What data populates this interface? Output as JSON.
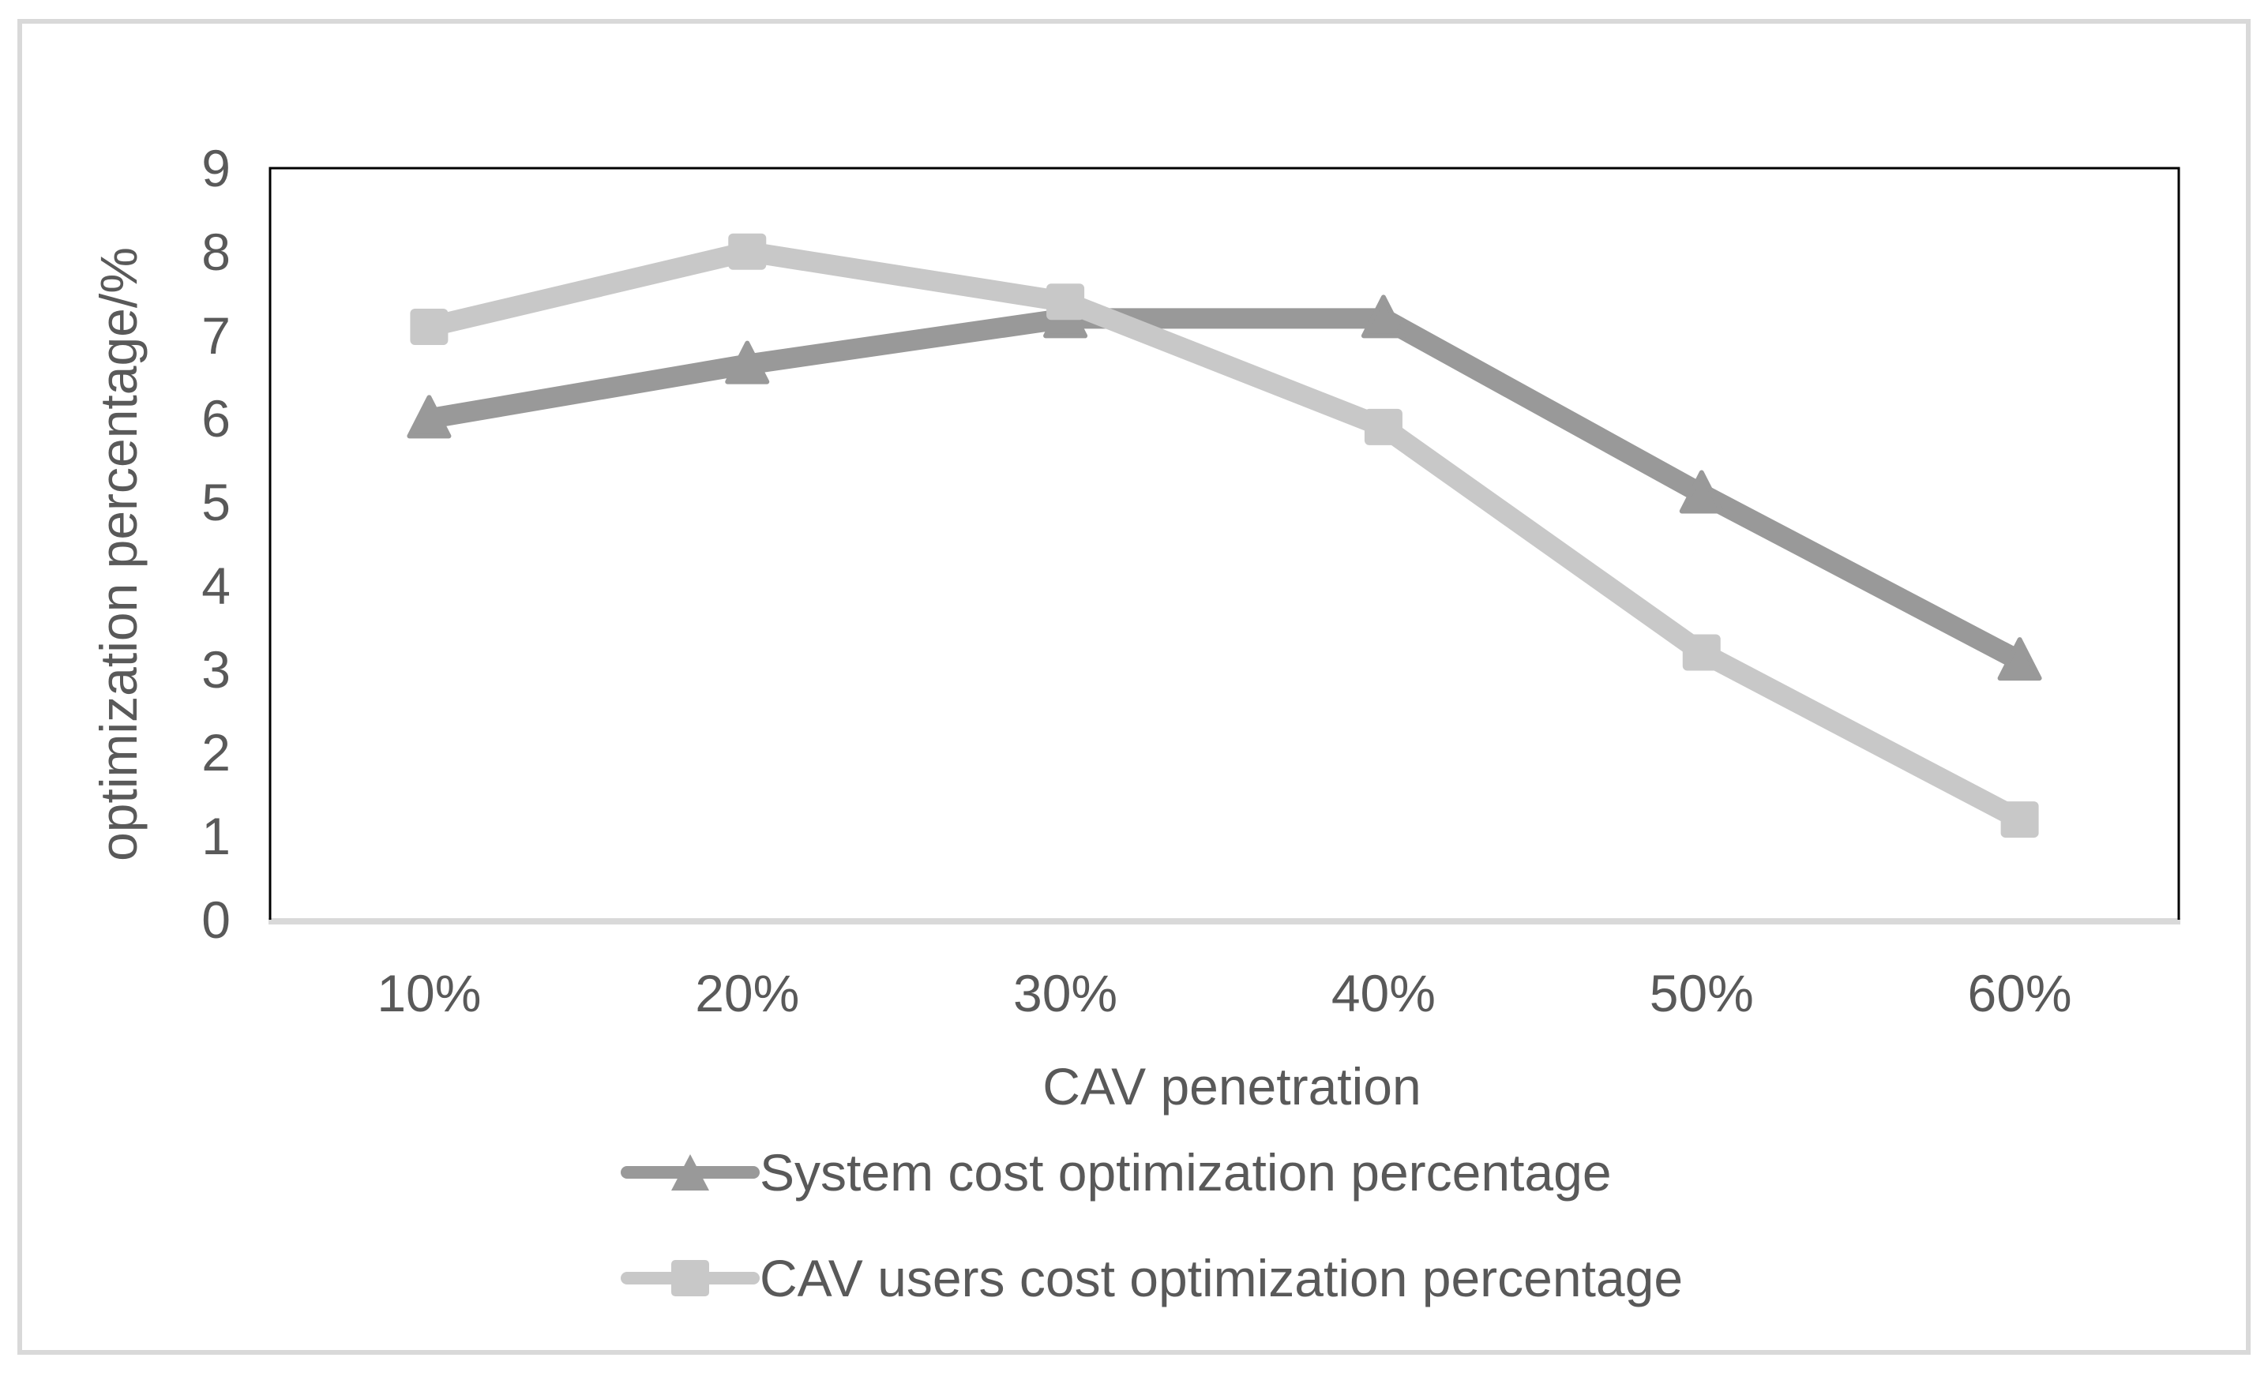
{
  "chart_data": {
    "type": "line",
    "categories": [
      "10%",
      "20%",
      "30%",
      "40%",
      "50%",
      "60%"
    ],
    "x_axis_title": "CAV penetration",
    "y_axis_title": "optimization percentage/%",
    "ylim": [
      0,
      9
    ],
    "y_ticks": [
      "0",
      "1",
      "2",
      "3",
      "4",
      "5",
      "6",
      "7",
      "8",
      "9"
    ],
    "grid": "off",
    "legend_position": "bottom",
    "series": [
      {
        "name": "System cost optimization percentage",
        "marker": "triangle",
        "color": "#999999",
        "values": [
          6.0,
          6.65,
          7.2,
          7.2,
          5.1,
          3.1
        ]
      },
      {
        "name": "CAV users cost optimization percentage",
        "marker": "square",
        "color": "#c8c8c8",
        "values": [
          7.1,
          8.0,
          7.4,
          5.9,
          3.2,
          1.2
        ]
      }
    ]
  },
  "colors": {
    "text": "#595959",
    "plot_border": "#000000",
    "x_axis_line": "#d9d9d9",
    "outer_border": "#d9d9d9",
    "background": "#ffffff"
  }
}
